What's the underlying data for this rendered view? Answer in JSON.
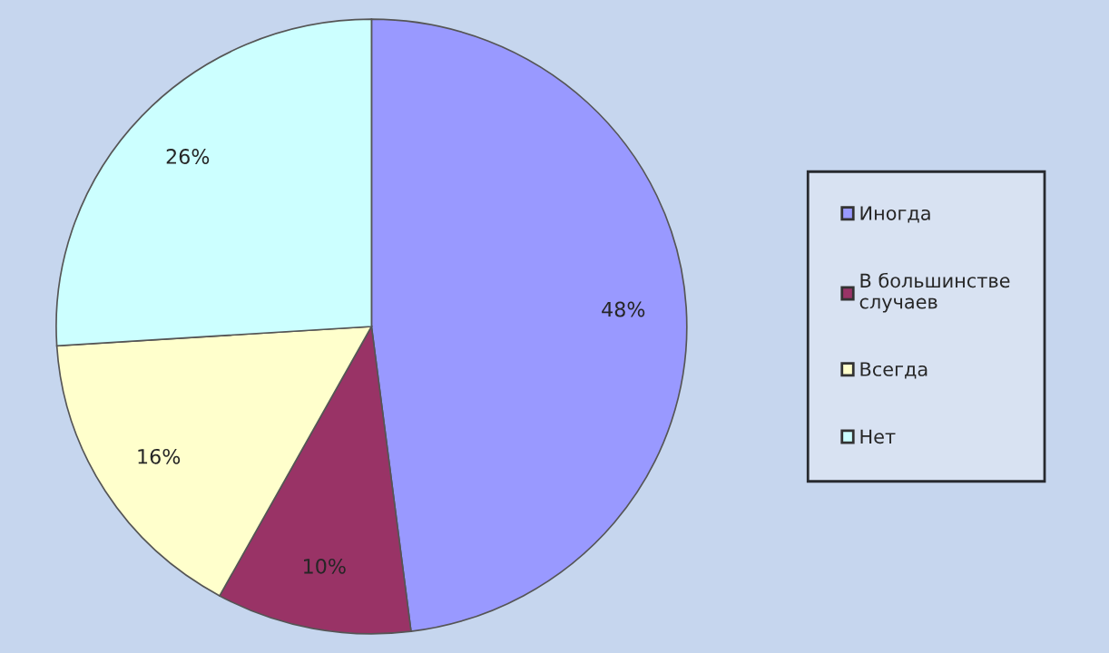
{
  "chart_data": {
    "type": "pie",
    "categories": [
      "Иногда",
      "В большинстве\nслучаев",
      "Всегда",
      "Нет"
    ],
    "values": [
      48,
      10,
      16,
      26
    ],
    "value_labels": [
      "48%",
      "10%",
      "16%",
      "26%"
    ],
    "colors": [
      "#9999ff",
      "#993366",
      "#ffffcc",
      "#ccffff"
    ],
    "legend": "right"
  }
}
